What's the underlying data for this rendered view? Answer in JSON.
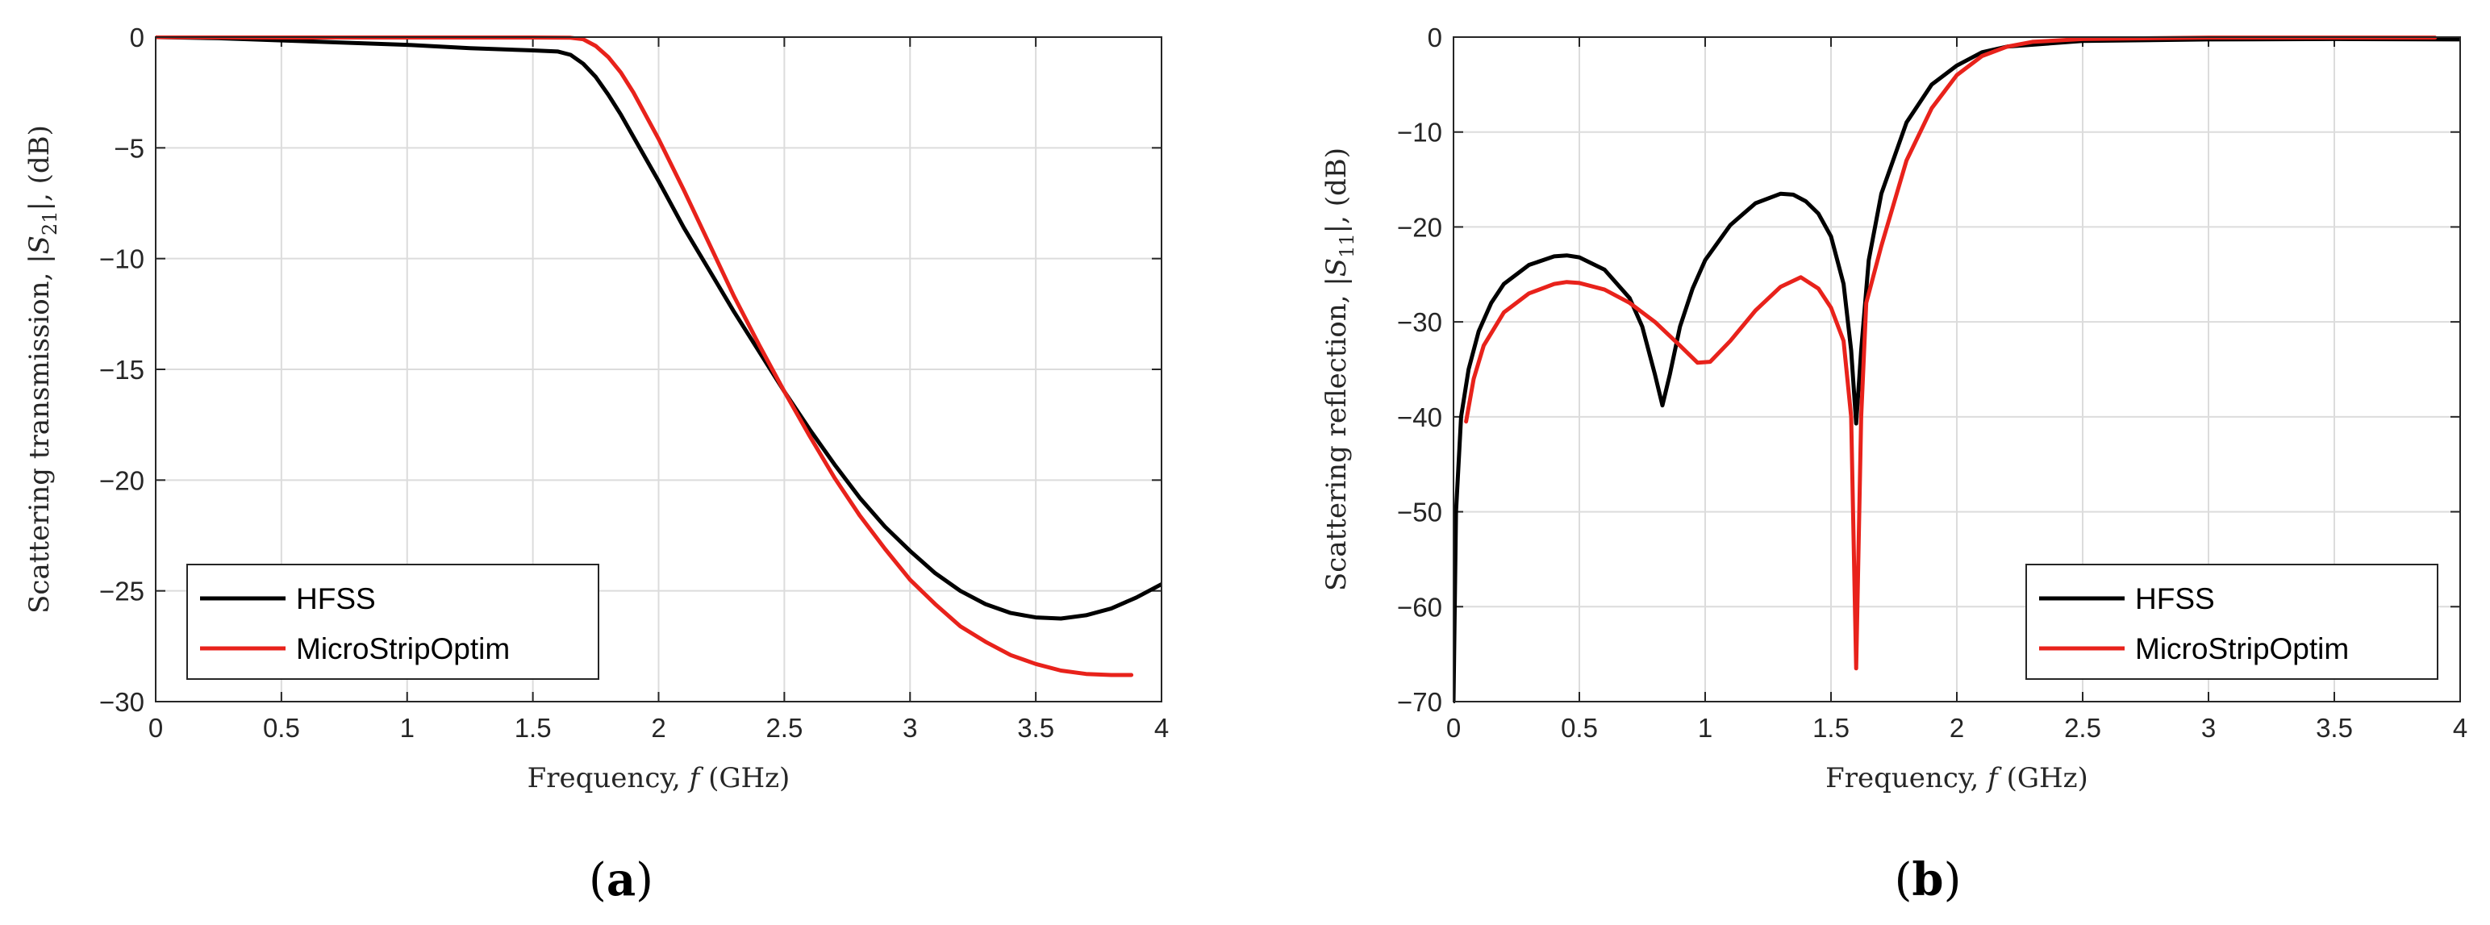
{
  "chart_data": [
    {
      "panel_label": "a",
      "type": "line",
      "xlabel": "Frequency, f (GHz)",
      "ylabel": "Scattering transmission, |S21|, (dB)",
      "xlim": [
        0,
        4
      ],
      "ylim": [
        -30,
        0
      ],
      "xticks": [
        0,
        0.5,
        1,
        1.5,
        2,
        2.5,
        3,
        3.5,
        4
      ],
      "xtick_labels": [
        "0",
        "0.5",
        "1",
        "1.5",
        "2",
        "2.5",
        "3",
        "3.5",
        "4"
      ],
      "yticks": [
        0,
        -5,
        -10,
        -15,
        -20,
        -25,
        -30
      ],
      "ytick_labels": [
        "0",
        "−5",
        "−10",
        "−15",
        "−20",
        "−25",
        "−30"
      ],
      "grid": true,
      "legend_position": "bottom-left",
      "series": [
        {
          "name": "HFSS",
          "color": "#000000",
          "points": [
            [
              0,
              0
            ],
            [
              0.25,
              -0.05
            ],
            [
              0.5,
              -0.15
            ],
            [
              0.75,
              -0.25
            ],
            [
              1.0,
              -0.35
            ],
            [
              1.25,
              -0.5
            ],
            [
              1.5,
              -0.6
            ],
            [
              1.6,
              -0.65
            ],
            [
              1.65,
              -0.8
            ],
            [
              1.7,
              -1.2
            ],
            [
              1.75,
              -1.8
            ],
            [
              1.8,
              -2.6
            ],
            [
              1.85,
              -3.5
            ],
            [
              1.9,
              -4.5
            ],
            [
              2.0,
              -6.5
            ],
            [
              2.1,
              -8.6
            ],
            [
              2.2,
              -10.5
            ],
            [
              2.3,
              -12.4
            ],
            [
              2.4,
              -14.2
            ],
            [
              2.5,
              -16
            ],
            [
              2.6,
              -17.7
            ],
            [
              2.7,
              -19.3
            ],
            [
              2.8,
              -20.8
            ],
            [
              2.9,
              -22.1
            ],
            [
              3.0,
              -23.2
            ],
            [
              3.1,
              -24.2
            ],
            [
              3.2,
              -25
            ],
            [
              3.3,
              -25.6
            ],
            [
              3.4,
              -26
            ],
            [
              3.5,
              -26.2
            ],
            [
              3.6,
              -26.25
            ],
            [
              3.7,
              -26.1
            ],
            [
              3.8,
              -25.8
            ],
            [
              3.9,
              -25.3
            ],
            [
              4.0,
              -24.7
            ]
          ]
        },
        {
          "name": "MicroStripOptim",
          "color": "#e8221b",
          "points": [
            [
              0,
              0
            ],
            [
              0.5,
              -0.02
            ],
            [
              1.0,
              -0.02
            ],
            [
              1.5,
              -0.02
            ],
            [
              1.65,
              -0.03
            ],
            [
              1.7,
              -0.1
            ],
            [
              1.75,
              -0.4
            ],
            [
              1.8,
              -0.9
            ],
            [
              1.85,
              -1.6
            ],
            [
              1.9,
              -2.5
            ],
            [
              2.0,
              -4.6
            ],
            [
              2.1,
              -6.9
            ],
            [
              2.2,
              -9.3
            ],
            [
              2.3,
              -11.7
            ],
            [
              2.4,
              -13.9
            ],
            [
              2.5,
              -16
            ],
            [
              2.6,
              -18
            ],
            [
              2.7,
              -19.9
            ],
            [
              2.8,
              -21.6
            ],
            [
              2.9,
              -23.1
            ],
            [
              3.0,
              -24.5
            ],
            [
              3.1,
              -25.6
            ],
            [
              3.2,
              -26.6
            ],
            [
              3.3,
              -27.3
            ],
            [
              3.4,
              -27.9
            ],
            [
              3.5,
              -28.3
            ],
            [
              3.6,
              -28.6
            ],
            [
              3.7,
              -28.75
            ],
            [
              3.8,
              -28.8
            ],
            [
              3.88,
              -28.8
            ]
          ]
        }
      ]
    },
    {
      "panel_label": "b",
      "type": "line",
      "xlabel": "Frequency, f (GHz)",
      "ylabel": "Scattering reflection, |S11|, (dB)",
      "xlim": [
        0,
        4
      ],
      "ylim": [
        -70,
        0
      ],
      "xticks": [
        0,
        0.5,
        1,
        1.5,
        2,
        2.5,
        3,
        3.5,
        4
      ],
      "xtick_labels": [
        "0",
        "0.5",
        "1",
        "1.5",
        "2",
        "2.5",
        "3",
        "3.5",
        "4"
      ],
      "yticks": [
        0,
        -10,
        -20,
        -30,
        -40,
        -50,
        -60,
        -70
      ],
      "ytick_labels": [
        "0",
        "−10",
        "−20",
        "−30",
        "−40",
        "−50",
        "−60",
        "−70"
      ],
      "grid": true,
      "legend_position": "bottom-right",
      "series": [
        {
          "name": "HFSS",
          "color": "#000000",
          "points": [
            [
              0,
              -70
            ],
            [
              0.01,
              -50
            ],
            [
              0.03,
              -40
            ],
            [
              0.06,
              -35
            ],
            [
              0.1,
              -31
            ],
            [
              0.15,
              -28
            ],
            [
              0.2,
              -26
            ],
            [
              0.3,
              -24
            ],
            [
              0.4,
              -23.1
            ],
            [
              0.45,
              -23
            ],
            [
              0.5,
              -23.2
            ],
            [
              0.6,
              -24.5
            ],
            [
              0.7,
              -27.5
            ],
            [
              0.75,
              -30.5
            ],
            [
              0.8,
              -35.5
            ],
            [
              0.83,
              -38.8
            ],
            [
              0.86,
              -35.5
            ],
            [
              0.9,
              -30.5
            ],
            [
              0.95,
              -26.5
            ],
            [
              1.0,
              -23.5
            ],
            [
              1.1,
              -19.8
            ],
            [
              1.2,
              -17.5
            ],
            [
              1.3,
              -16.5
            ],
            [
              1.35,
              -16.6
            ],
            [
              1.4,
              -17.3
            ],
            [
              1.45,
              -18.6
            ],
            [
              1.5,
              -21
            ],
            [
              1.55,
              -26
            ],
            [
              1.58,
              -33
            ],
            [
              1.6,
              -40.7
            ],
            [
              1.62,
              -33
            ],
            [
              1.65,
              -23.5
            ],
            [
              1.7,
              -16.5
            ],
            [
              1.8,
              -9
            ],
            [
              1.9,
              -5
            ],
            [
              2.0,
              -3
            ],
            [
              2.1,
              -1.6
            ],
            [
              2.2,
              -1
            ],
            [
              2.5,
              -0.4
            ],
            [
              3.0,
              -0.25
            ],
            [
              3.5,
              -0.2
            ],
            [
              4.0,
              -0.25
            ]
          ]
        },
        {
          "name": "MicroStripOptim",
          "color": "#e8221b",
          "points": [
            [
              0.05,
              -40.5
            ],
            [
              0.08,
              -36
            ],
            [
              0.12,
              -32.5
            ],
            [
              0.2,
              -29
            ],
            [
              0.3,
              -27
            ],
            [
              0.4,
              -26
            ],
            [
              0.45,
              -25.8
            ],
            [
              0.5,
              -25.9
            ],
            [
              0.6,
              -26.6
            ],
            [
              0.7,
              -28
            ],
            [
              0.8,
              -30
            ],
            [
              0.9,
              -32.5
            ],
            [
              0.97,
              -34.3
            ],
            [
              1.02,
              -34.2
            ],
            [
              1.1,
              -32
            ],
            [
              1.2,
              -28.8
            ],
            [
              1.3,
              -26.3
            ],
            [
              1.38,
              -25.3
            ],
            [
              1.45,
              -26.5
            ],
            [
              1.5,
              -28.5
            ],
            [
              1.55,
              -32
            ],
            [
              1.58,
              -40
            ],
            [
              1.6,
              -66.5
            ],
            [
              1.62,
              -40
            ],
            [
              1.64,
              -28
            ],
            [
              1.7,
              -22
            ],
            [
              1.8,
              -13
            ],
            [
              1.9,
              -7.5
            ],
            [
              2.0,
              -4
            ],
            [
              2.1,
              -2
            ],
            [
              2.2,
              -1
            ],
            [
              2.3,
              -0.5
            ],
            [
              2.5,
              -0.2
            ],
            [
              3.0,
              -0.05
            ],
            [
              3.5,
              -0.05
            ],
            [
              3.9,
              -0.05
            ]
          ]
        }
      ]
    }
  ]
}
